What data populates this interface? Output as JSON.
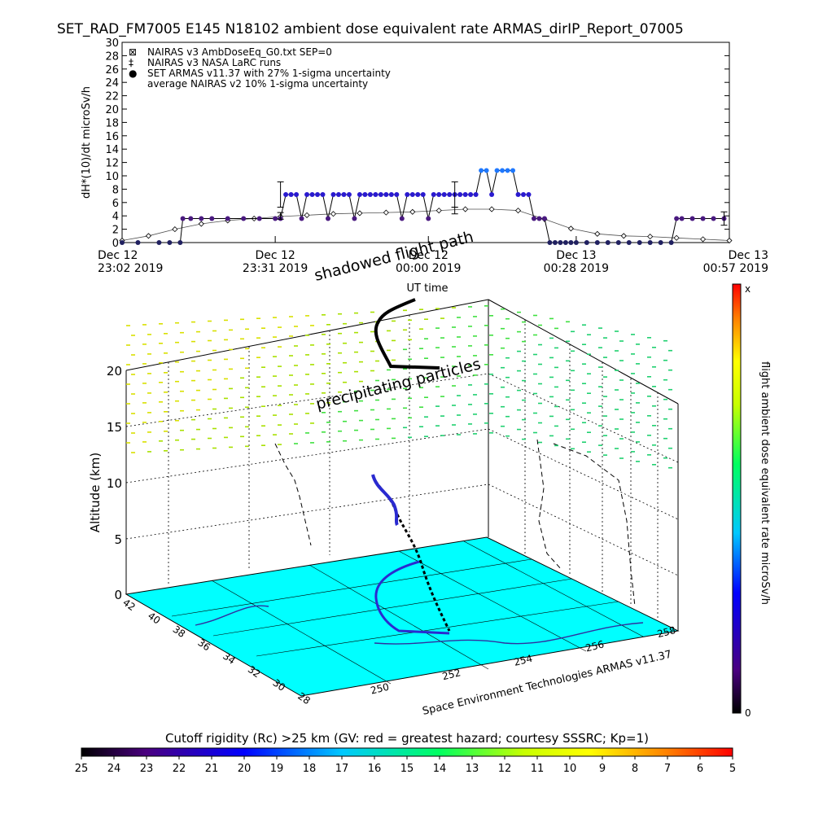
{
  "title": "SET_RAD_FM7005  E145 N18102 ambient dose equivalent rate ARMAS_dirIP_Report_07005",
  "chart_data": [
    {
      "type": "line",
      "ylabel": "dH*(10)/dt microSv/h",
      "xlabel": "UT time",
      "ylim": [
        0,
        30
      ],
      "yticks": [
        0,
        2,
        4,
        6,
        8,
        10,
        12,
        14,
        16,
        18,
        20,
        22,
        24,
        26,
        28,
        30
      ],
      "xticks": [
        {
          "line1": "Dec 12",
          "line2": "23:02 2019",
          "minutes": 0
        },
        {
          "line1": "Dec 12",
          "line2": "23:31 2019",
          "minutes": 29
        },
        {
          "line1": "Dec 12",
          "line2": "00:00 2019",
          "minutes": 58
        },
        {
          "line1": "Dec 13",
          "line2": "00:28 2019",
          "minutes": 86
        },
        {
          "line1": "Dec 13",
          "line2": "00:57 2019",
          "minutes": 115
        }
      ],
      "xlim_minutes": [
        0,
        115
      ],
      "legend": [
        {
          "symbol": "⊠",
          "label": "NAIRAS v3 AmbDoseEq_G0.txt SEP=0"
        },
        {
          "symbol": "‡",
          "label": "NAIRAS v3 NASA LaRC runs"
        },
        {
          "symbol": "●",
          "label": "SET ARMAS v11.37 with 27% 1-sigma uncertainty"
        },
        {
          "symbol": "",
          "label": "average NAIRAS v2 10% 1-sigma uncertainty"
        }
      ],
      "series": [
        {
          "name": "SET ARMAS v11.37 with 27% 1-sigma uncertainty",
          "x": [
            0,
            3,
            7,
            9,
            11,
            11.5,
            13,
            15,
            17,
            20,
            23,
            26,
            29,
            30,
            31,
            32,
            33,
            34,
            35,
            36,
            37,
            38,
            39,
            40,
            41,
            42,
            43,
            44,
            45,
            46,
            47,
            48,
            49,
            50,
            51,
            52,
            53,
            54,
            55,
            56,
            57,
            58,
            59,
            60,
            61,
            62,
            63,
            64,
            65,
            66,
            67,
            68,
            69,
            70,
            71,
            72,
            73,
            74,
            75,
            76,
            77,
            78,
            79,
            80,
            81,
            82,
            83,
            84,
            85,
            86,
            88,
            90,
            92,
            94,
            96,
            98,
            100,
            102,
            104,
            105,
            106,
            108,
            110,
            112,
            114
          ],
          "y": [
            0,
            0,
            0,
            0,
            0,
            3.6,
            3.6,
            3.6,
            3.6,
            3.6,
            3.6,
            3.6,
            3.6,
            3.6,
            7.2,
            7.2,
            7.2,
            3.6,
            7.2,
            7.2,
            7.2,
            7.2,
            3.6,
            7.2,
            7.2,
            7.2,
            7.2,
            3.6,
            7.2,
            7.2,
            7.2,
            7.2,
            7.2,
            7.2,
            7.2,
            7.2,
            3.6,
            7.2,
            7.2,
            7.2,
            7.2,
            3.6,
            7.2,
            7.2,
            7.2,
            7.2,
            7.2,
            7.2,
            7.2,
            7.2,
            7.2,
            10.8,
            10.8,
            7.2,
            10.8,
            10.8,
            10.8,
            10.8,
            7.2,
            7.2,
            7.2,
            3.6,
            3.6,
            3.6,
            0,
            0,
            0,
            0,
            0,
            0,
            0,
            0,
            0,
            0,
            0,
            0,
            0,
            0,
            0,
            3.6,
            3.6,
            3.6,
            3.6,
            3.6,
            3.6
          ],
          "error_bars": [
            {
              "x": 30,
              "y": 7.2,
              "err": 1.9
            },
            {
              "x": 63,
              "y": 7.2,
              "err": 1.9
            },
            {
              "x": 114,
              "y": 3.6,
              "err": 1.0
            }
          ]
        },
        {
          "name": "NAIRAS v3 AmbDoseEq_G0.txt SEP=0",
          "x": [
            0,
            5,
            10,
            15,
            20,
            25,
            30,
            35,
            40,
            45,
            50,
            55,
            60,
            65,
            70,
            75,
            80,
            85,
            90,
            95,
            100,
            105,
            110,
            115
          ],
          "y": [
            0.3,
            1.0,
            2.0,
            2.8,
            3.3,
            3.6,
            3.9,
            4.1,
            4.3,
            4.4,
            4.5,
            4.6,
            4.8,
            5.0,
            5.0,
            4.8,
            3.5,
            2.1,
            1.3,
            1.0,
            0.9,
            0.7,
            0.5,
            0.3
          ],
          "error_bars": [
            {
              "x": 30,
              "y": 4.0,
              "err": 0.5
            },
            {
              "x": 63,
              "y": 4.8,
              "err": 0.5
            }
          ]
        }
      ]
    },
    {
      "type": "scatter",
      "zlabel": "Altitude (km)",
      "zlim": [
        0,
        20
      ],
      "zticks": [
        "0",
        "5",
        "10",
        "15",
        "20"
      ],
      "lat_ticks": [
        "42",
        "40",
        "38",
        "36",
        "34",
        "32",
        "30",
        "28"
      ],
      "lon_ticks": [
        "250",
        "252",
        "254",
        "256",
        "258"
      ],
      "annotations": [
        "shadowed flight path",
        "precipitating particles"
      ],
      "credit": "Space Environment Technologies ARMAS v11.37",
      "side_colorbar": {
        "label": "flight ambient dose equivalent rate microSv/h",
        "top": "x",
        "bottom": "0"
      },
      "bottom_colorbar": {
        "title": "Cutoff rigidity (Rc) >25 km (GV: red = greatest hazard; courtesy SSSRC; Kp=1)",
        "ticks": [
          "25",
          "24",
          "23",
          "22",
          "21",
          "20",
          "19",
          "18",
          "17",
          "16",
          "15",
          "14",
          "13",
          "12",
          "11",
          "10",
          "9",
          "8",
          "7",
          "6",
          "5"
        ]
      },
      "colors": {
        "ground_map": "#00ffff",
        "armas_series": "#2020c0",
        "nairas_series": "#505050"
      }
    }
  ]
}
